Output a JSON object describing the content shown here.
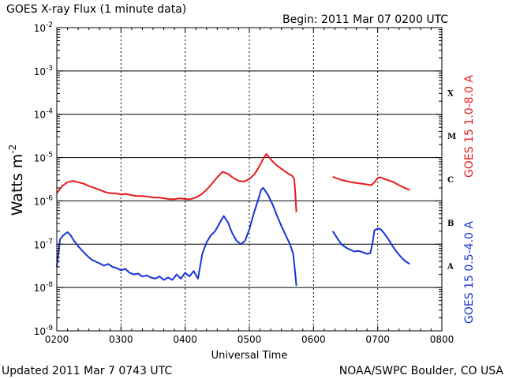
{
  "header": {
    "title": "GOES X-ray Flux (1 minute data)",
    "begin": "Begin: 2011 Mar 07 0200 UTC"
  },
  "footer": {
    "updated": "Updated 2011 Mar  7 0743 UTC",
    "credit": "NOAA/SWPC Boulder, CO USA"
  },
  "colors": {
    "long_channel": "#e8191b",
    "short_channel": "#1733d6",
    "axes": "#000000",
    "background": "#ffffff"
  },
  "chart_data": {
    "type": "line",
    "title": "GOES X-ray Flux (1 minute data)",
    "xlabel": "Universal Time",
    "ylabel": "Watts m",
    "ylabel_superscript": "-2",
    "x_ticks": [
      "0200",
      "0300",
      "0400",
      "0500",
      "0600",
      "0700",
      "0800"
    ],
    "x_range_minutes_from_0200": [
      0,
      360
    ],
    "y_scale": "log",
    "ylim": [
      1e-09,
      0.01
    ],
    "y_tick_labels": [
      {
        "base": "10",
        "exp": "-9"
      },
      {
        "base": "10",
        "exp": "-8"
      },
      {
        "base": "10",
        "exp": "-7"
      },
      {
        "base": "10",
        "exp": "-6"
      },
      {
        "base": "10",
        "exp": "-5"
      },
      {
        "base": "10",
        "exp": "-4"
      },
      {
        "base": "10",
        "exp": "-3"
      },
      {
        "base": "10",
        "exp": "-2"
      }
    ],
    "flare_classes": [
      {
        "label": "A",
        "exp": -8
      },
      {
        "label": "B",
        "exp": -7
      },
      {
        "label": "C",
        "exp": -6
      },
      {
        "label": "M",
        "exp": -5
      },
      {
        "label": "X",
        "exp": -4
      }
    ],
    "grid": "horizontal solid at decades, vertical dashed hourly",
    "right_labels": [
      "GOES 15 1.0-8.0 A",
      "GOES 15 0.5-4.0 A"
    ],
    "series": [
      {
        "name": "GOES 15 1.0-8.0 A",
        "color": "#e8191b",
        "segments": [
          [
            [
              0,
              1.5e-06
            ],
            [
              5,
              2.2e-06
            ],
            [
              10,
              2.7e-06
            ],
            [
              15,
              2.9e-06
            ],
            [
              20,
              2.7e-06
            ],
            [
              25,
              2.5e-06
            ],
            [
              30,
              2.2e-06
            ],
            [
              35,
              2e-06
            ],
            [
              40,
              1.8e-06
            ],
            [
              45,
              1.6e-06
            ],
            [
              50,
              1.5e-06
            ],
            [
              55,
              1.5e-06
            ],
            [
              60,
              1.4e-06
            ],
            [
              65,
              1.45e-06
            ],
            [
              70,
              1.35e-06
            ],
            [
              75,
              1.3e-06
            ],
            [
              80,
              1.3e-06
            ],
            [
              85,
              1.25e-06
            ],
            [
              90,
              1.2e-06
            ],
            [
              95,
              1.2e-06
            ],
            [
              100,
              1.15e-06
            ],
            [
              105,
              1.1e-06
            ],
            [
              110,
              1.1e-06
            ],
            [
              115,
              1.15e-06
            ],
            [
              120,
              1.1e-06
            ],
            [
              125,
              1.1e-06
            ],
            [
              130,
              1.2e-06
            ],
            [
              135,
              1.4e-06
            ],
            [
              140,
              1.8e-06
            ],
            [
              145,
              2.5e-06
            ],
            [
              150,
              3.5e-06
            ],
            [
              155,
              4.7e-06
            ],
            [
              160,
              4.2e-06
            ],
            [
              165,
              3.4e-06
            ],
            [
              170,
              2.9e-06
            ],
            [
              175,
              2.8e-06
            ],
            [
              180,
              3.2e-06
            ],
            [
              185,
              4.2e-06
            ],
            [
              188,
              5.5e-06
            ],
            [
              191,
              7.5e-06
            ],
            [
              194,
              1.05e-05
            ],
            [
              196,
              1.2e-05
            ],
            [
              198,
              1.05e-05
            ],
            [
              201,
              8.5e-06
            ],
            [
              205,
              6.8e-06
            ],
            [
              210,
              5.5e-06
            ],
            [
              215,
              4.5e-06
            ],
            [
              220,
              3.8e-06
            ],
            [
              222,
              3.2e-06
            ],
            [
              223,
              1.5e-06
            ],
            [
              224,
              5.5e-07
            ]
          ],
          [
            [
              258,
              3.6e-06
            ],
            [
              265,
              3.1e-06
            ],
            [
              270,
              2.9e-06
            ],
            [
              275,
              2.7e-06
            ],
            [
              280,
              2.6e-06
            ],
            [
              285,
              2.5e-06
            ],
            [
              290,
              2.4e-06
            ],
            [
              294,
              2.3e-06
            ],
            [
              297,
              2.7e-06
            ],
            [
              300,
              3.4e-06
            ],
            [
              303,
              3.5e-06
            ],
            [
              306,
              3.2e-06
            ],
            [
              310,
              3e-06
            ],
            [
              315,
              2.7e-06
            ],
            [
              320,
              2.3e-06
            ],
            [
              325,
              2e-06
            ],
            [
              330,
              1.8e-06
            ]
          ]
        ]
      },
      {
        "name": "GOES 15 0.5-4.0 A",
        "color": "#1733d6",
        "segments": [
          [
            [
              0,
              3e-08
            ],
            [
              3,
              1.3e-07
            ],
            [
              6,
              1.6e-07
            ],
            [
              10,
              1.9e-07
            ],
            [
              13,
              1.6e-07
            ],
            [
              16,
              1.2e-07
            ],
            [
              20,
              9e-08
            ],
            [
              24,
              7e-08
            ],
            [
              28,
              5.5e-08
            ],
            [
              32,
              4.5e-08
            ],
            [
              36,
              4e-08
            ],
            [
              40,
              3.6e-08
            ],
            [
              44,
              3.2e-08
            ],
            [
              48,
              3.5e-08
            ],
            [
              52,
              3e-08
            ],
            [
              56,
              2.8e-08
            ],
            [
              60,
              2.5e-08
            ],
            [
              64,
              2.7e-08
            ],
            [
              68,
              2.2e-08
            ],
            [
              72,
              2e-08
            ],
            [
              76,
              2.1e-08
            ],
            [
              80,
              1.8e-08
            ],
            [
              84,
              1.9e-08
            ],
            [
              88,
              1.7e-08
            ],
            [
              92,
              1.6e-08
            ],
            [
              96,
              1.8e-08
            ],
            [
              100,
              1.5e-08
            ],
            [
              104,
              1.7e-08
            ],
            [
              108,
              1.5e-08
            ],
            [
              112,
              2e-08
            ],
            [
              116,
              1.6e-08
            ],
            [
              120,
              2.2e-08
            ],
            [
              124,
              1.8e-08
            ],
            [
              128,
              2.4e-08
            ],
            [
              132,
              1.6e-08
            ],
            [
              136,
              6e-08
            ],
            [
              140,
              1.1e-07
            ],
            [
              144,
              1.6e-07
            ],
            [
              148,
              2e-07
            ],
            [
              152,
              3e-07
            ],
            [
              156,
              4.5e-07
            ],
            [
              160,
              3.2e-07
            ],
            [
              164,
              1.8e-07
            ],
            [
              168,
              1.2e-07
            ],
            [
              172,
              1e-07
            ],
            [
              176,
              1.2e-07
            ],
            [
              180,
              2.2e-07
            ],
            [
              184,
              5e-07
            ],
            [
              188,
              1e-06
            ],
            [
              191,
              1.8e-06
            ],
            [
              193,
              2e-06
            ],
            [
              195,
              1.7e-06
            ],
            [
              198,
              1.3e-06
            ],
            [
              202,
              8e-07
            ],
            [
              206,
              4.5e-07
            ],
            [
              210,
              2.6e-07
            ],
            [
              214,
              1.6e-07
            ],
            [
              218,
              1e-07
            ],
            [
              221,
              6e-08
            ],
            [
              223,
              2e-08
            ],
            [
              224,
              1.1e-08
            ]
          ],
          [
            [
              258,
              2e-07
            ],
            [
              262,
              1.4e-07
            ],
            [
              266,
              1e-07
            ],
            [
              270,
              8.5e-08
            ],
            [
              274,
              7.5e-08
            ],
            [
              278,
              6.8e-08
            ],
            [
              282,
              7e-08
            ],
            [
              286,
              6.5e-08
            ],
            [
              290,
              6e-08
            ],
            [
              293,
              6.2e-08
            ],
            [
              295,
              1e-07
            ],
            [
              297,
              2.1e-07
            ],
            [
              300,
              2.3e-07
            ],
            [
              303,
              2.2e-07
            ],
            [
              306,
              1.8e-07
            ],
            [
              310,
              1.3e-07
            ],
            [
              314,
              9e-08
            ],
            [
              318,
              6.5e-08
            ],
            [
              322,
              5e-08
            ],
            [
              326,
              4e-08
            ],
            [
              330,
              3.5e-08
            ]
          ]
        ]
      }
    ]
  }
}
